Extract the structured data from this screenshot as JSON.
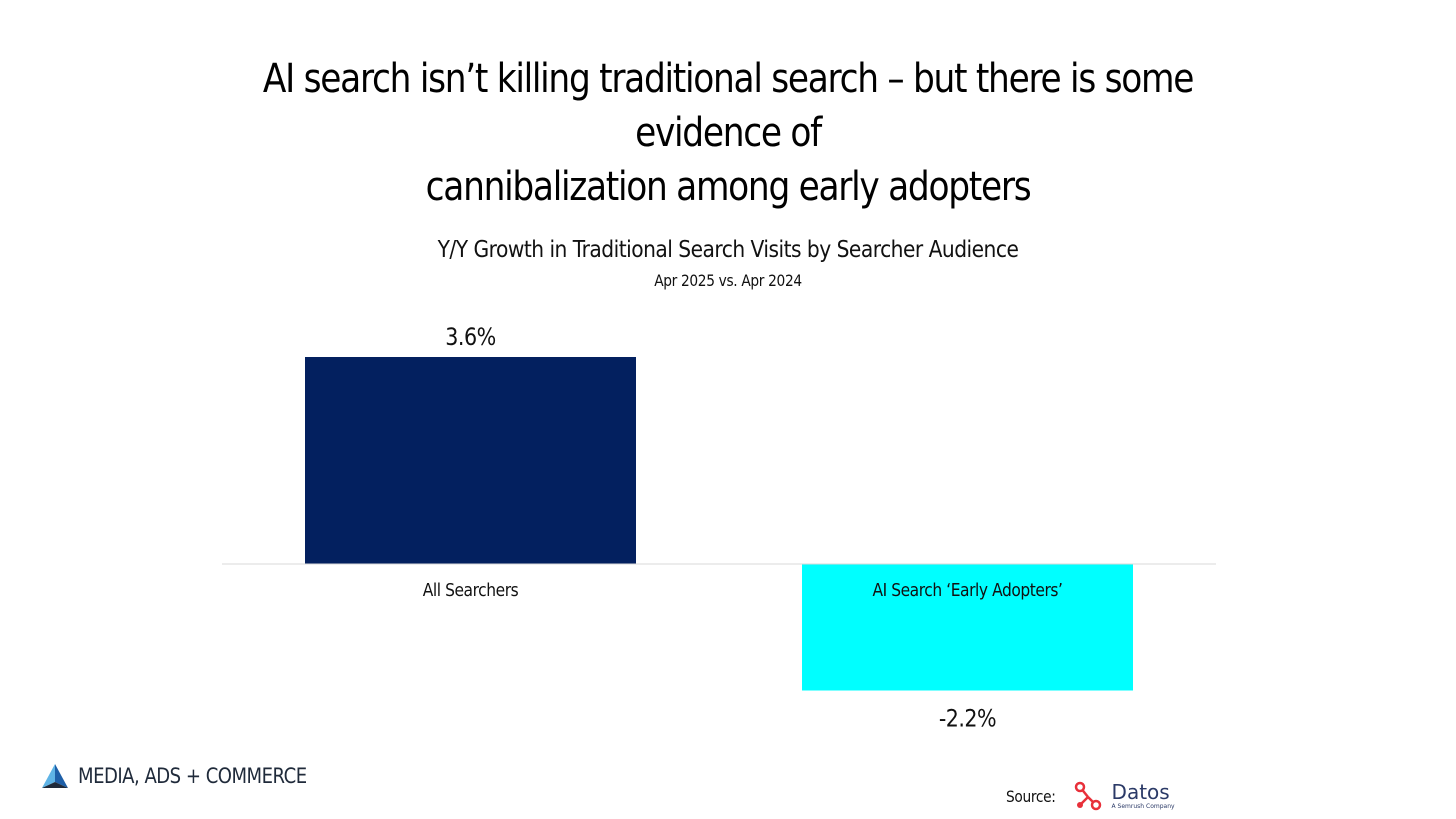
{
  "headline": {
    "line1": "AI search isn’t killing traditional search – but there is some evidence of",
    "line2": "cannibalization among early adopters"
  },
  "chart_data": {
    "type": "bar",
    "title": "Y/Y Growth in Traditional Search Visits by Searcher Audience",
    "subtitle": "Apr 2025 vs. Apr 2024",
    "categories": [
      "All Searchers",
      "AI Search ‘Early Adopters’"
    ],
    "values": [
      3.6,
      -2.2
    ],
    "data_labels": [
      "3.6%",
      "-2.2%"
    ],
    "bar_colors": [
      "#03205f",
      "#00ffff"
    ],
    "ylim": [
      -2.2,
      3.6
    ],
    "grid": false,
    "legend": "none"
  },
  "branding": {
    "logo_text": "MEDIA, ADS + COMMERCE",
    "logo_icon": "triangle-logo-icon"
  },
  "source": {
    "label": "Source:",
    "brand_name": "Datos",
    "brand_tagline": "A Semrush Company",
    "brand_icon": "datos-network-icon",
    "brand_color": "#e8303a"
  }
}
